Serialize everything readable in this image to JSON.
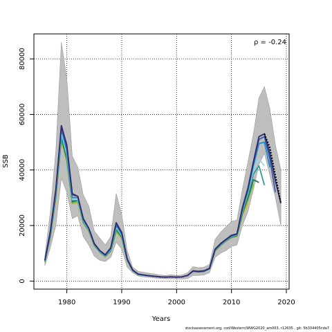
{
  "chart_data": {
    "type": "line",
    "title": "",
    "xlabel": "Years",
    "ylabel": "SSB",
    "xlim": [
      1974,
      2020.5
    ],
    "ylim": [
      -2900,
      89000
    ],
    "x_ticks": [
      1980,
      1990,
      2000,
      2010,
      2020
    ],
    "y_ticks": [
      0,
      20000,
      40000,
      60000,
      80000
    ],
    "grid": true,
    "annotation": "ρ = -0.24",
    "ribbon": {
      "x": [
        1976,
        1977,
        1978,
        1979,
        1980,
        1981,
        1982,
        1983,
        1984,
        1985,
        1986,
        1987,
        1988,
        1989,
        1990,
        1991,
        1992,
        1993,
        1994,
        1995,
        1996,
        1997,
        1998,
        1999,
        2000,
        2001,
        2002,
        2003,
        2004,
        2005,
        2006,
        2007,
        2008,
        2009,
        2010,
        2011,
        2012,
        2013,
        2014,
        2015,
        2016,
        2017,
        2018,
        2019
      ],
      "lower": [
        5500,
        12000,
        20000,
        37000,
        32000,
        22500,
        23500,
        16000,
        13000,
        9000,
        7500,
        7000,
        8500,
        14000,
        11500,
        5000,
        3000,
        1800,
        1500,
        1300,
        1100,
        900,
        800,
        800,
        800,
        700,
        900,
        2000,
        2000,
        2200,
        3000,
        8500,
        10000,
        11000,
        12500,
        13000,
        20000,
        25000,
        33000,
        42000,
        46000,
        38000,
        30000,
        20000
      ],
      "upper": [
        9000,
        25000,
        47000,
        86000,
        73000,
        45000,
        41000,
        31000,
        27000,
        18000,
        15500,
        13000,
        16000,
        31500,
        24000,
        11000,
        5000,
        3500,
        3200,
        2800,
        2500,
        2200,
        2000,
        2300,
        2000,
        2200,
        3000,
        5200,
        4800,
        5000,
        6000,
        15000,
        17500,
        19500,
        21500,
        22000,
        33000,
        43000,
        53000,
        66000,
        70000,
        62000,
        49000,
        40000
      ]
    },
    "series": [
      {
        "color": "#000000",
        "dashed": true,
        "x": [
          2016,
          2017,
          2018,
          2019
        ],
        "y": [
          53000,
          48000,
          38000,
          28000
        ]
      },
      {
        "color": "#2d2a6e",
        "x": [
          1976,
          1977,
          1978,
          1979,
          1980,
          1981,
          1982,
          1983,
          1984,
          1985,
          1986,
          1987,
          1988,
          1989,
          1990,
          1991,
          1992,
          1993,
          1994,
          1995,
          1996,
          1997,
          1998,
          1999,
          2000,
          2001,
          2002,
          2003,
          2004,
          2005,
          2006,
          2007,
          2008,
          2009,
          2010,
          2011,
          2012,
          2013,
          2014,
          2015,
          2016,
          2017,
          2018,
          2019
        ],
        "y": [
          7500,
          18000,
          33000,
          56000,
          49000,
          31500,
          30500,
          22500,
          19000,
          13500,
          11000,
          9500,
          12000,
          21000,
          17500,
          8000,
          4000,
          2500,
          2200,
          1900,
          1700,
          1500,
          1400,
          1500,
          1400,
          1500,
          2000,
          3700,
          3500,
          3700,
          4600,
          11500,
          13500,
          15000,
          16500,
          17000,
          26500,
          33500,
          43000,
          52000,
          53000,
          46000,
          36000,
          28000
        ]
      },
      {
        "color": "#3c5aa8",
        "x": [
          1976,
          1977,
          1978,
          1979,
          1980,
          1981,
          1982,
          1983,
          1984,
          1985,
          1986,
          1987,
          1988,
          1989,
          1990,
          1991,
          1992,
          1993,
          1994,
          1995,
          1996,
          1997,
          1998,
          1999,
          2000,
          2001,
          2002,
          2003,
          2004,
          2005,
          2006,
          2007,
          2008,
          2009,
          2010,
          2011,
          2012,
          2013,
          2014,
          2015,
          2016,
          2017,
          2018
        ],
        "y": [
          7400,
          17500,
          32500,
          55500,
          48000,
          31000,
          30500,
          22300,
          19000,
          13500,
          11000,
          9300,
          11800,
          20500,
          17200,
          7900,
          3900,
          2500,
          2200,
          1900,
          1700,
          1500,
          1400,
          1500,
          1400,
          1500,
          2000,
          3600,
          3400,
          3600,
          4500,
          11300,
          13300,
          14900,
          16300,
          16900,
          26000,
          33000,
          42500,
          51000,
          52000,
          44000,
          32000
        ]
      },
      {
        "color": "#1f8ccc",
        "x": [
          1976,
          1977,
          1978,
          1979,
          1980,
          1981,
          1982,
          1983,
          1984,
          1985,
          1986,
          1987,
          1988,
          1989,
          1990,
          1991,
          1992,
          1993,
          1994,
          1995,
          1996,
          1997,
          1998,
          1999,
          2000,
          2001,
          2002,
          2003,
          2004,
          2005,
          2006,
          2007,
          2008,
          2009,
          2010,
          2011,
          2012,
          2013,
          2014,
          2015,
          2016,
          2017
        ],
        "y": [
          7300,
          17000,
          32000,
          54500,
          47000,
          30000,
          30000,
          22000,
          18800,
          13300,
          10800,
          9200,
          11600,
          20000,
          16800,
          7800,
          3900,
          2400,
          2100,
          1900,
          1700,
          1500,
          1400,
          1500,
          1400,
          1500,
          2000,
          3600,
          3400,
          3600,
          4500,
          11200,
          13200,
          14800,
          16200,
          16800,
          25800,
          32500,
          41500,
          49500,
          50000,
          41000
        ]
      },
      {
        "color": "#9bd7e8",
        "x": [
          1976,
          1977,
          1978,
          1979,
          1980,
          1981,
          1982,
          1983,
          1984,
          1985,
          1986,
          1987,
          1988,
          1989,
          1990,
          1991,
          1992,
          1993,
          1994,
          1995,
          1996,
          1997,
          1998,
          1999,
          2000,
          2001,
          2002,
          2003,
          2004,
          2005,
          2006,
          2007,
          2008,
          2009,
          2010,
          2011,
          2012,
          2013,
          2014,
          2015,
          2016
        ],
        "y": [
          7200,
          16800,
          31500,
          53500,
          46000,
          29500,
          29500,
          21800,
          18500,
          13200,
          10700,
          9100,
          11400,
          19500,
          16500,
          7700,
          3800,
          2400,
          2100,
          1900,
          1700,
          1500,
          1400,
          1500,
          1400,
          1500,
          2000,
          3600,
          3400,
          3600,
          4500,
          11100,
          13100,
          14700,
          16100,
          16700,
          25500,
          32000,
          40000,
          44000,
          41500
        ]
      },
      {
        "color": "#2aa198",
        "x": [
          1976,
          1977,
          1978,
          1979,
          1980,
          1981,
          1982,
          1983,
          1984,
          1985,
          1986,
          1987,
          1988,
          1989,
          1990,
          1991,
          1992,
          1993,
          1994,
          1995,
          1996,
          1997,
          1998,
          1999,
          2000,
          2001,
          2002,
          2003,
          2004,
          2005,
          2006,
          2007,
          2008,
          2009,
          2010,
          2011,
          2012,
          2013,
          2014,
          2015,
          2016
        ],
        "y": [
          7100,
          16500,
          31000,
          52500,
          45000,
          29000,
          29000,
          21500,
          18300,
          13000,
          10600,
          9000,
          11200,
          19000,
          16200,
          7600,
          3800,
          2400,
          2100,
          1900,
          1700,
          1500,
          1400,
          1500,
          1400,
          1500,
          2000,
          3600,
          3400,
          3600,
          4500,
          11000,
          13000,
          14600,
          16000,
          16500,
          25000,
          31000,
          38500,
          41500,
          34500
        ]
      },
      {
        "color": "#1e7a50",
        "x": [
          1976,
          1977,
          1978,
          1979,
          1980,
          1981,
          1982,
          1983,
          1984,
          1985,
          1986,
          1987,
          1988,
          1989,
          1990,
          1991,
          1992,
          1993,
          1994,
          1995,
          1996,
          1997,
          1998,
          1999,
          2000,
          2001,
          2002,
          2003,
          2004,
          2005,
          2006,
          2007,
          2008,
          2009,
          2010,
          2011,
          2012,
          2013,
          2014,
          2015
        ],
        "y": [
          7000,
          16200,
          30500,
          51500,
          44000,
          28500,
          29000,
          21300,
          18200,
          12900,
          10500,
          8900,
          11000,
          18500,
          15900,
          7500,
          3700,
          2400,
          2100,
          1900,
          1700,
          1500,
          1400,
          1500,
          1400,
          1500,
          2000,
          3500,
          3300,
          3500,
          4400,
          10900,
          12900,
          14500,
          15800,
          16300,
          24500,
          30000,
          36500,
          35500
        ]
      },
      {
        "color": "#8bbf3c",
        "x": [
          1976,
          1977,
          1978,
          1979,
          1980,
          1981,
          1982,
          1983,
          1984,
          1985,
          1986,
          1987,
          1988,
          1989,
          1990,
          1991,
          1992,
          1993,
          1994,
          1995,
          1996,
          1997,
          1998,
          1999,
          2000,
          2001,
          2002,
          2003,
          2004,
          2005,
          2006,
          2007,
          2008,
          2009,
          2010,
          2011,
          2012,
          2013,
          2014
        ],
        "y": [
          6900,
          16000,
          30000,
          51000,
          43500,
          28000,
          28500,
          21000,
          18000,
          12800,
          10400,
          8800,
          10800,
          18000,
          15500,
          7400,
          3700,
          2400,
          2100,
          1900,
          1700,
          1500,
          1400,
          1500,
          1400,
          1500,
          2000,
          3500,
          3300,
          3500,
          4400,
          10800,
          12800,
          14400,
          15700,
          16200,
          24000,
          29000,
          35000
        ]
      },
      {
        "color": "#d4b43c",
        "x": [
          1976,
          1977,
          1978,
          1979,
          1980,
          1981,
          1982,
          1983,
          1984,
          1985,
          1986,
          1987,
          1988,
          1989,
          1990,
          1991,
          1992,
          1993,
          1994,
          1995,
          1996,
          1997,
          1998,
          1999,
          2000,
          2001,
          2002,
          2003,
          2004,
          2005,
          2006,
          2007,
          2008,
          2009,
          2010,
          2011,
          2012,
          2013
        ],
        "y": [
          6800,
          15800,
          29500,
          50500,
          43000,
          27800,
          28300,
          20800,
          17800,
          12700,
          10300,
          8700,
          10700,
          17800,
          15300,
          7300,
          3700,
          2400,
          2100,
          1900,
          1700,
          1500,
          1400,
          1500,
          1400,
          1500,
          2000,
          3500,
          3300,
          3500,
          4400,
          10700,
          12700,
          14300,
          15600,
          16100,
          23500,
          28000
        ]
      }
    ]
  },
  "footer": "stockassessment.org, cod/Western/WWG2020_am003, r12635 , git: 5b334405cda7"
}
